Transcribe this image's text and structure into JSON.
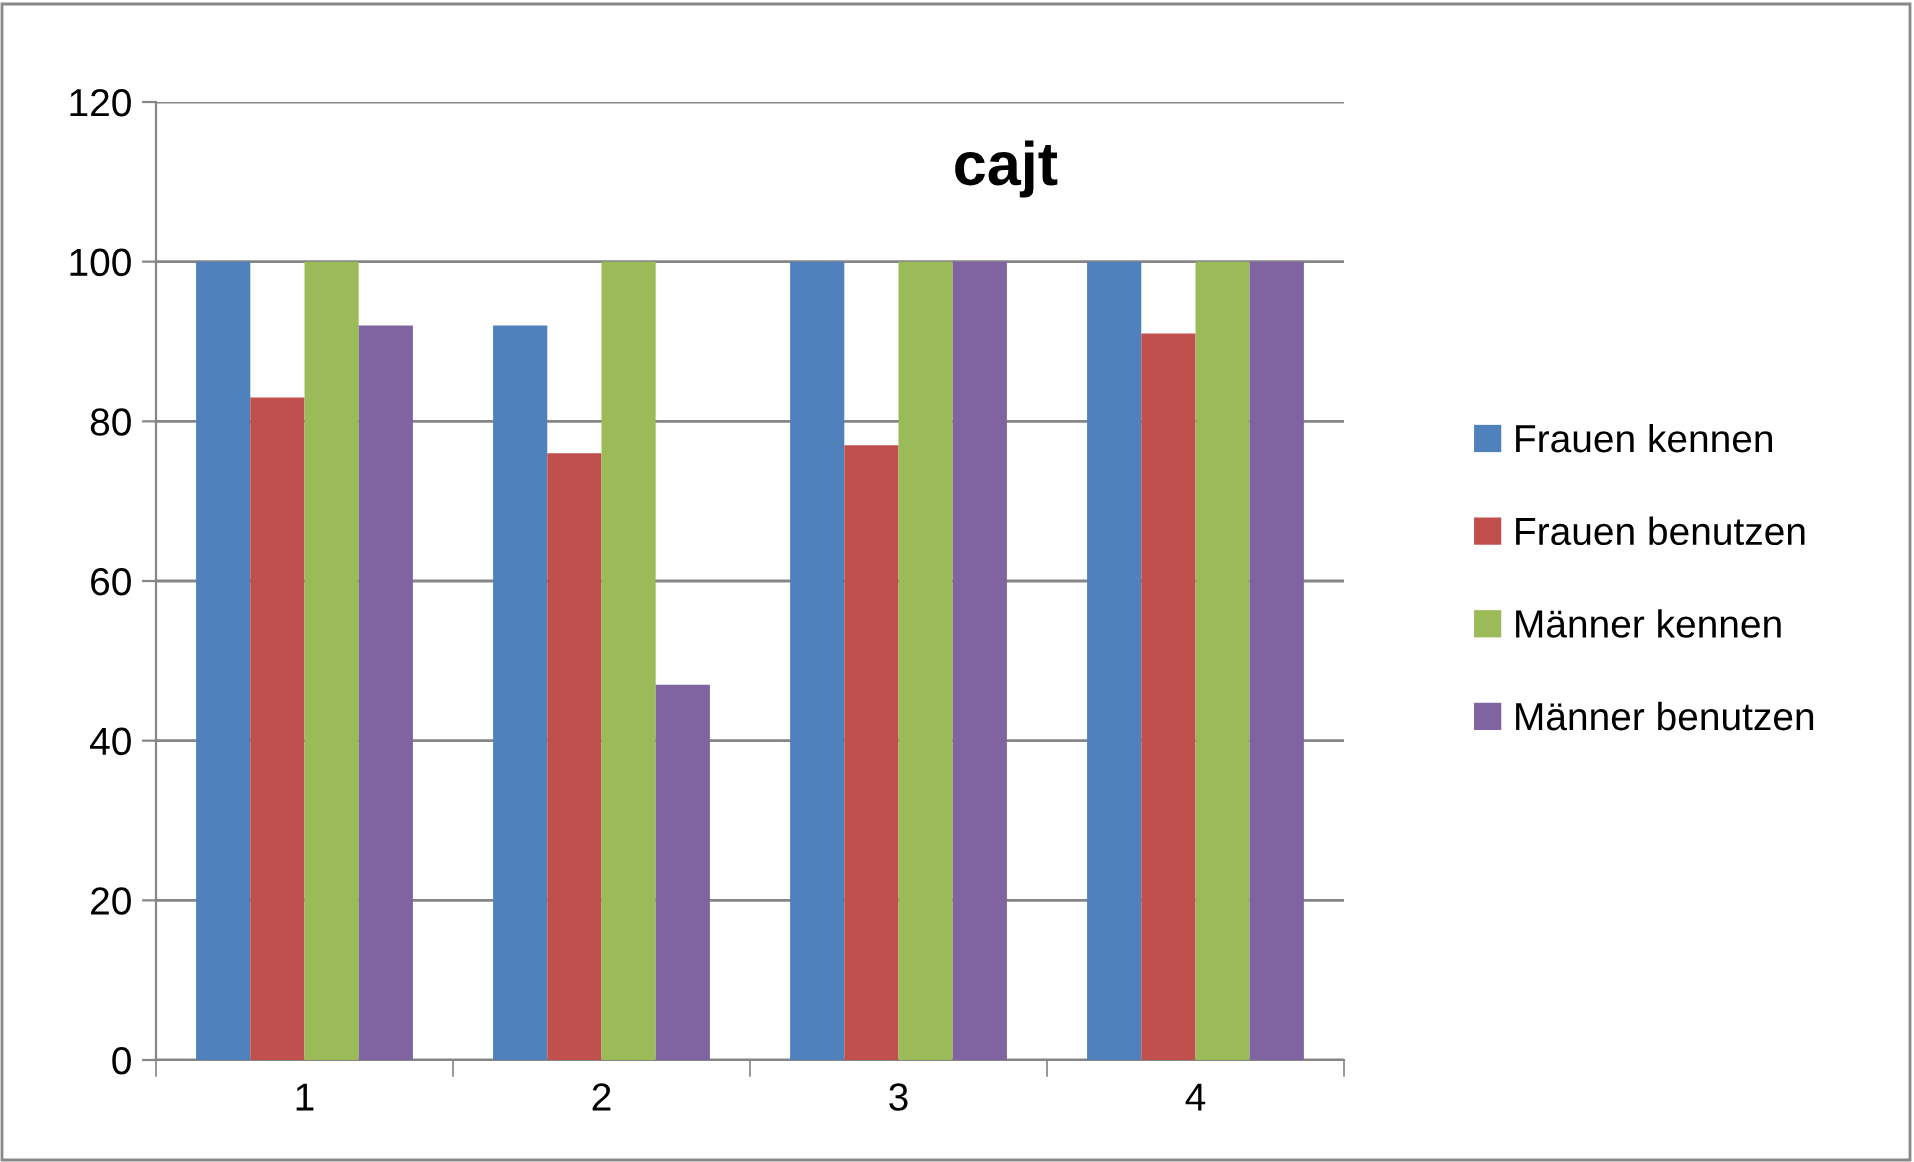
{
  "chart_data": {
    "type": "bar",
    "title": "cajt",
    "categories": [
      "1",
      "2",
      "3",
      "4"
    ],
    "series": [
      {
        "name": "Frauen kennen",
        "color": "#4f81bd",
        "values": [
          100,
          92,
          100,
          100
        ]
      },
      {
        "name": "Frauen benutzen",
        "color": "#c0504d",
        "values": [
          83,
          76,
          77,
          91
        ]
      },
      {
        "name": "Männer kennen",
        "color": "#9bbb59",
        "values": [
          100,
          100,
          100,
          100
        ]
      },
      {
        "name": "Männer benutzen",
        "color": "#8064a2",
        "values": [
          92,
          47,
          100,
          100
        ]
      }
    ],
    "ylim": [
      0,
      120
    ],
    "yticks": [
      0,
      20,
      40,
      60,
      80,
      100,
      120
    ],
    "grid": "y",
    "legend": "right"
  }
}
